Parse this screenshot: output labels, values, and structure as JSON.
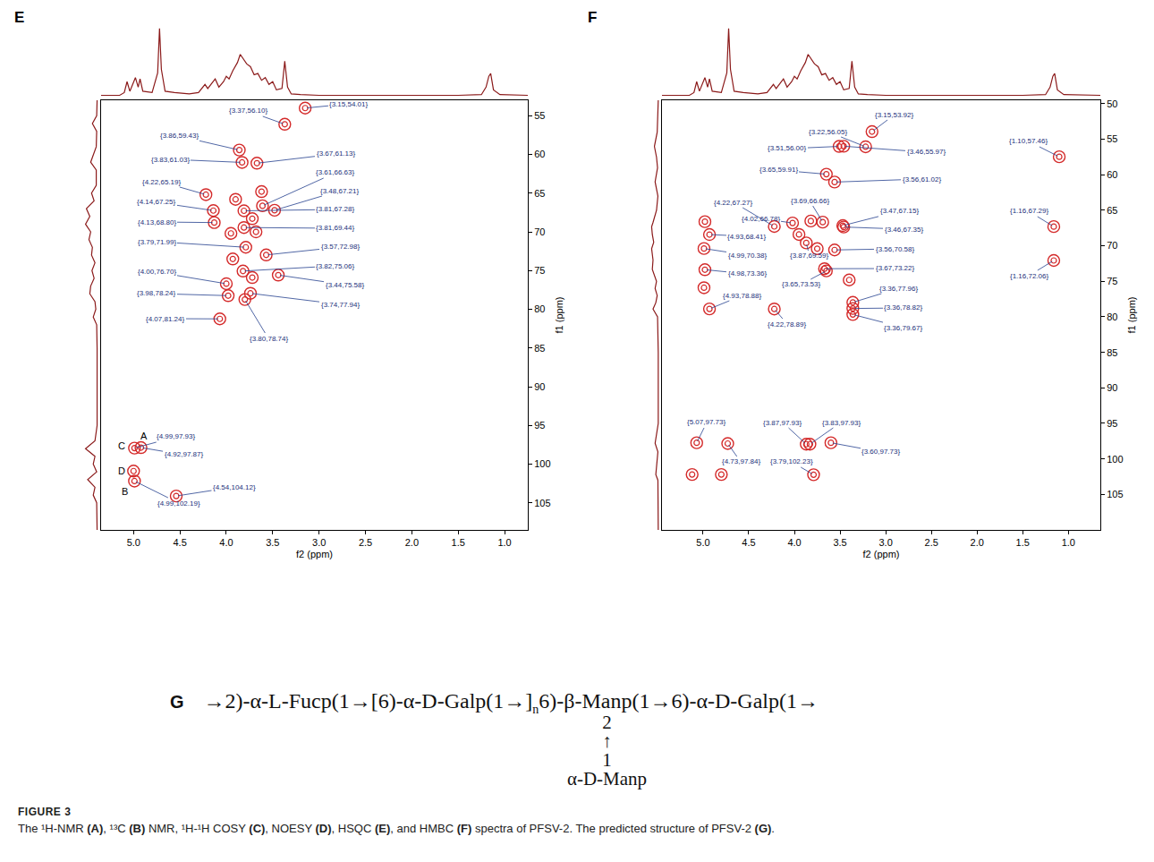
{
  "chart_data": [
    {
      "type": "contour",
      "panel_label": "E",
      "xlabel": "f2 (ppm)",
      "ylabel": "f1 (ppm)",
      "color": "#d42a2a",
      "grid": false,
      "xlim": [
        5.35,
        0.75
      ],
      "ylim": [
        108.5,
        53
      ],
      "xticks": [
        {
          "value": 5.0,
          "label": "5.0"
        },
        {
          "value": 4.5,
          "label": "4.5"
        },
        {
          "value": 4.0,
          "label": "4.0"
        },
        {
          "value": 3.5,
          "label": "3.5"
        },
        {
          "value": 3.0,
          "label": "3.0"
        },
        {
          "value": 2.5,
          "label": "2.5"
        },
        {
          "value": 2.0,
          "label": "2.0"
        },
        {
          "value": 1.5,
          "label": "1.5"
        },
        {
          "value": 1.0,
          "label": "1.0"
        }
      ],
      "yticks": [
        55,
        60,
        65,
        70,
        75,
        80,
        85,
        90,
        95,
        100,
        105
      ],
      "peaks": [
        {
          "x": 3.37,
          "y": 56.1,
          "label": "{3.37,56.10}"
        },
        {
          "x": 3.15,
          "y": 54.01,
          "label": "{3.15,54.01}"
        },
        {
          "x": 3.86,
          "y": 59.43,
          "label": "{3.86,59.43}"
        },
        {
          "x": 3.83,
          "y": 61.03,
          "label": "{3.83,61.03}"
        },
        {
          "x": 3.67,
          "y": 61.13,
          "label": "{3.67,61.13}"
        },
        {
          "x": 4.22,
          "y": 65.19,
          "label": "{4.22,65.19}"
        },
        {
          "x": 3.61,
          "y": 66.63,
          "label": "{3.61,66.63}"
        },
        {
          "x": 3.48,
          "y": 67.21,
          "label": "{3.48,67.21}"
        },
        {
          "x": 4.14,
          "y": 67.25,
          "label": "{4.14,67.25}"
        },
        {
          "x": 3.81,
          "y": 67.28,
          "label": "{3.81,67.28}"
        },
        {
          "x": 4.13,
          "y": 68.8,
          "label": "{4.13,68.80}"
        },
        {
          "x": 3.81,
          "y": 69.44,
          "label": "{3.81,69.44}"
        },
        {
          "x": 3.79,
          "y": 71.99,
          "label": "{3.79,71.99}"
        },
        {
          "x": 3.57,
          "y": 72.98,
          "label": "{3.57,72.98}"
        },
        {
          "x": 4.0,
          "y": 76.7,
          "label": "{4.00,76.70}"
        },
        {
          "x": 3.82,
          "y": 75.06,
          "label": "{3.82,75.06}"
        },
        {
          "x": 3.44,
          "y": 75.58,
          "label": "{3.44,75.58}"
        },
        {
          "x": 3.98,
          "y": 78.24,
          "label": "{3.98,78.24}"
        },
        {
          "x": 3.74,
          "y": 77.94,
          "label": "{3.74,77.94}"
        },
        {
          "x": 3.8,
          "y": 78.74,
          "label": "{3.80,78.74}"
        },
        {
          "x": 4.07,
          "y": 81.24,
          "label": "{4.07,81.24}"
        },
        {
          "x": 4.99,
          "y": 97.93,
          "label": "{4.99,97.93}",
          "tag": "A"
        },
        {
          "x": 4.92,
          "y": 97.87,
          "label": "{4.92,97.87}",
          "tag": "C"
        },
        {
          "x": 4.99,
          "y": 102.19,
          "label": "{4.99,102.19}",
          "tag": "B"
        },
        {
          "x": 4.54,
          "y": 104.12,
          "label": "{4.54,104.12}"
        },
        {
          "x": 5.0,
          "y": 100.9,
          "tag": "D"
        },
        {
          "x": 3.9,
          "y": 65.8
        },
        {
          "x": 3.72,
          "y": 68.3
        },
        {
          "x": 3.95,
          "y": 70.2
        },
        {
          "x": 3.68,
          "y": 70.0
        },
        {
          "x": 3.93,
          "y": 73.5
        },
        {
          "x": 3.62,
          "y": 64.8
        },
        {
          "x": 3.72,
          "y": 75.9
        }
      ],
      "top_projection": {
        "type": "line",
        "color": "#8b1a1a",
        "tick_labels": false,
        "ylim": [
          0,
          105
        ],
        "x": [
          5.35,
          5.15,
          5.1,
          5.07,
          5.04,
          5.0,
          4.98,
          4.95,
          4.93,
          4.9,
          4.8,
          4.74,
          4.72,
          4.7,
          4.66,
          4.56,
          4.5,
          4.4,
          4.3,
          4.23,
          4.2,
          4.15,
          4.12,
          4.08,
          4.03,
          4.0,
          3.97,
          3.93,
          3.88,
          3.85,
          3.82,
          3.78,
          3.74,
          3.7,
          3.66,
          3.62,
          3.58,
          3.54,
          3.5,
          3.46,
          3.4,
          3.37,
          3.34,
          3.3,
          3.2,
          3.0,
          2.5,
          2.0,
          1.5,
          1.25,
          1.2,
          1.17,
          1.15,
          1.12,
          1.05,
          0.75
        ],
        "values": [
          2,
          2,
          6,
          22,
          8,
          20,
          28,
          14,
          26,
          8,
          6,
          35,
          100,
          40,
          8,
          6,
          5,
          4,
          6,
          18,
          12,
          20,
          26,
          14,
          22,
          30,
          26,
          38,
          50,
          62,
          56,
          48,
          44,
          32,
          34,
          24,
          28,
          18,
          22,
          10,
          12,
          52,
          14,
          4,
          3,
          2,
          2,
          2,
          2,
          3,
          14,
          30,
          34,
          10,
          3,
          2
        ]
      },
      "left_projection": {
        "type": "line",
        "color": "#8b1a1a",
        "tick_labels": false,
        "xlim": [
          100,
          0
        ],
        "y": [
          53,
          55,
          56,
          57,
          59,
          60,
          61,
          62,
          64,
          65,
          66,
          67,
          68,
          69,
          70,
          71,
          72,
          73,
          74,
          75,
          76,
          77,
          78,
          79,
          80,
          81,
          82,
          85,
          90,
          95,
          97,
          98,
          99,
          100,
          101,
          102,
          103,
          104,
          105,
          108.5
        ],
        "values": [
          3,
          4,
          14,
          4,
          5,
          12,
          18,
          5,
          5,
          16,
          10,
          28,
          20,
          30,
          18,
          22,
          14,
          16,
          8,
          15,
          10,
          18,
          20,
          8,
          6,
          12,
          4,
          3,
          3,
          3,
          8,
          30,
          8,
          12,
          4,
          25,
          8,
          12,
          4,
          3
        ]
      }
    },
    {
      "type": "contour",
      "panel_label": "F",
      "xlabel": "f2 (ppm)",
      "ylabel": "f1 (ppm)",
      "color": "#d42a2a",
      "grid": false,
      "xlim": [
        5.45,
        0.65
      ],
      "ylim": [
        110,
        49.5
      ],
      "xticks": [
        {
          "value": 5.0,
          "label": "5.0"
        },
        {
          "value": 4.5,
          "label": "4.5"
        },
        {
          "value": 4.0,
          "label": "4.0"
        },
        {
          "value": 3.5,
          "label": "3.5"
        },
        {
          "value": 3.0,
          "label": "3.0"
        },
        {
          "value": 2.5,
          "label": "2.5"
        },
        {
          "value": 2.0,
          "label": "2.0"
        },
        {
          "value": 1.5,
          "label": "1.5"
        },
        {
          "value": 1.0,
          "label": "1.0"
        }
      ],
      "yticks": [
        50,
        55,
        60,
        65,
        70,
        75,
        80,
        85,
        90,
        95,
        100,
        105
      ],
      "peaks": [
        {
          "x": 3.15,
          "y": 53.92,
          "label": "{3.15,53.92}"
        },
        {
          "x": 3.22,
          "y": 56.05,
          "label": "{3.22,56.05}"
        },
        {
          "x": 3.51,
          "y": 56.0,
          "label": "{3.51,56.00}"
        },
        {
          "x": 3.46,
          "y": 55.97,
          "label": "{3.46,55.97}"
        },
        {
          "x": 3.56,
          "y": 61.02,
          "label": "{3.56,61.02}"
        },
        {
          "x": 3.65,
          "y": 59.91,
          "label": "{3.65,59.91}"
        },
        {
          "x": 1.1,
          "y": 57.46,
          "label": "{1.10,57.46}"
        },
        {
          "x": 4.22,
          "y": 67.27,
          "label": "{4.22,67.27}"
        },
        {
          "x": 3.69,
          "y": 66.66,
          "label": "{3.69,66.66}"
        },
        {
          "x": 3.47,
          "y": 67.15,
          "label": "{3.47,67.15}"
        },
        {
          "x": 4.02,
          "y": 66.78,
          "label": "{4.02,66.78}"
        },
        {
          "x": 3.46,
          "y": 67.35,
          "label": "{3.46,67.35}"
        },
        {
          "x": 1.16,
          "y": 67.29,
          "label": "{1.16,67.29}"
        },
        {
          "x": 4.93,
          "y": 68.41,
          "label": "{4.93,68.41}"
        },
        {
          "x": 3.87,
          "y": 69.59,
          "label": "{3.87,69.59}"
        },
        {
          "x": 3.56,
          "y": 70.58,
          "label": "{3.56,70.58}"
        },
        {
          "x": 3.65,
          "y": 73.53,
          "label": "{3.65,73.53}"
        },
        {
          "x": 4.99,
          "y": 70.38,
          "label": "{4.99,70.38}"
        },
        {
          "x": 1.16,
          "y": 72.06,
          "label": "{1.16,72.06}"
        },
        {
          "x": 4.98,
          "y": 73.36,
          "label": "{4.98,73.36}"
        },
        {
          "x": 3.67,
          "y": 73.22,
          "label": "{3.67,73.22}"
        },
        {
          "x": 4.93,
          "y": 78.88,
          "label": "{4.93,78.88}"
        },
        {
          "x": 4.22,
          "y": 78.89,
          "label": "{4.22,78.89}"
        },
        {
          "x": 3.36,
          "y": 78.82,
          "label": "{3.36,78.82}"
        },
        {
          "x": 3.36,
          "y": 77.96,
          "label": "{3.36,77.96}"
        },
        {
          "x": 3.36,
          "y": 79.67,
          "label": "{3.36,79.67}"
        },
        {
          "x": 5.07,
          "y": 97.73,
          "label": "{5.07,97.73}"
        },
        {
          "x": 3.87,
          "y": 97.93,
          "label": "{3.87,97.93}"
        },
        {
          "x": 3.83,
          "y": 97.93,
          "label": "{3.83,97.93}"
        },
        {
          "x": 4.73,
          "y": 97.84,
          "label": "{4.73,97.84}"
        },
        {
          "x": 3.6,
          "y": 97.73,
          "label": "{3.60,97.73}"
        },
        {
          "x": 3.79,
          "y": 102.23,
          "label": "{3.79,102.23}"
        },
        {
          "x": 5.12,
          "y": 102.2
        },
        {
          "x": 4.8,
          "y": 102.2
        },
        {
          "x": 4.98,
          "y": 66.6
        },
        {
          "x": 4.99,
          "y": 75.9
        },
        {
          "x": 3.82,
          "y": 66.5
        },
        {
          "x": 3.75,
          "y": 70.4
        },
        {
          "x": 3.95,
          "y": 68.4
        },
        {
          "x": 3.4,
          "y": 74.8
        }
      ],
      "top_projection": {
        "type": "line",
        "color": "#8b1a1a",
        "tick_labels": false,
        "ylim": [
          0,
          105
        ],
        "x": [
          5.45,
          5.15,
          5.1,
          5.07,
          5.04,
          5.0,
          4.98,
          4.95,
          4.93,
          4.9,
          4.8,
          4.74,
          4.72,
          4.7,
          4.66,
          4.56,
          4.5,
          4.4,
          4.3,
          4.23,
          4.2,
          4.15,
          4.12,
          4.08,
          4.03,
          4.0,
          3.97,
          3.93,
          3.88,
          3.85,
          3.82,
          3.78,
          3.74,
          3.7,
          3.66,
          3.62,
          3.58,
          3.54,
          3.5,
          3.46,
          3.4,
          3.37,
          3.34,
          3.3,
          3.2,
          3.0,
          2.5,
          2.0,
          1.5,
          1.25,
          1.2,
          1.17,
          1.15,
          1.12,
          1.05,
          0.65
        ],
        "values": [
          2,
          2,
          6,
          22,
          8,
          20,
          28,
          14,
          26,
          8,
          6,
          35,
          100,
          40,
          8,
          6,
          5,
          4,
          6,
          18,
          12,
          20,
          26,
          14,
          22,
          30,
          26,
          38,
          50,
          62,
          56,
          48,
          44,
          32,
          34,
          24,
          28,
          18,
          22,
          10,
          12,
          52,
          14,
          4,
          3,
          2,
          2,
          2,
          2,
          3,
          14,
          30,
          34,
          10,
          3,
          2
        ]
      },
      "left_projection": {
        "type": "line",
        "color": "#8b1a1a",
        "tick_labels": false,
        "xlim": [
          100,
          0
        ],
        "y": [
          49.5,
          54,
          56,
          57.5,
          59,
          61,
          63,
          65,
          66.7,
          67.3,
          68.4,
          69.5,
          70.4,
          72,
          73.3,
          75,
          76,
          77,
          78,
          78.9,
          80,
          85,
          90,
          95,
          97.8,
          99,
          102.2,
          103,
          110
        ],
        "values": [
          3,
          6,
          14,
          8,
          5,
          12,
          4,
          8,
          18,
          22,
          20,
          16,
          22,
          18,
          20,
          8,
          12,
          6,
          10,
          18,
          5,
          3,
          3,
          3,
          12,
          4,
          10,
          4,
          3
        ]
      }
    }
  ],
  "structure": {
    "panel_label": "G",
    "chain": [
      "→2)-α-L-Fucp(1→",
      {
        "bracket": "["
      },
      "6)-α-D-Galp(1→",
      {
        "bracket": "]",
        "sub": "n"
      },
      "6)-β-",
      {
        "text": "Manp",
        "branch": [
          "2",
          "↑",
          "1",
          "α-D-Manp"
        ]
      },
      "(1→6)-α-D-Galp(1→"
    ]
  },
  "caption": {
    "figure": "FIGURE 3",
    "text": "The ¹H-NMR (A), ¹³C (B) NMR, ¹H-¹H COSY (C), NOESY (D), HSQC (E), and HMBC (F) spectra of PFSV-2. The predicted structure of PFSV-2 (G)."
  }
}
